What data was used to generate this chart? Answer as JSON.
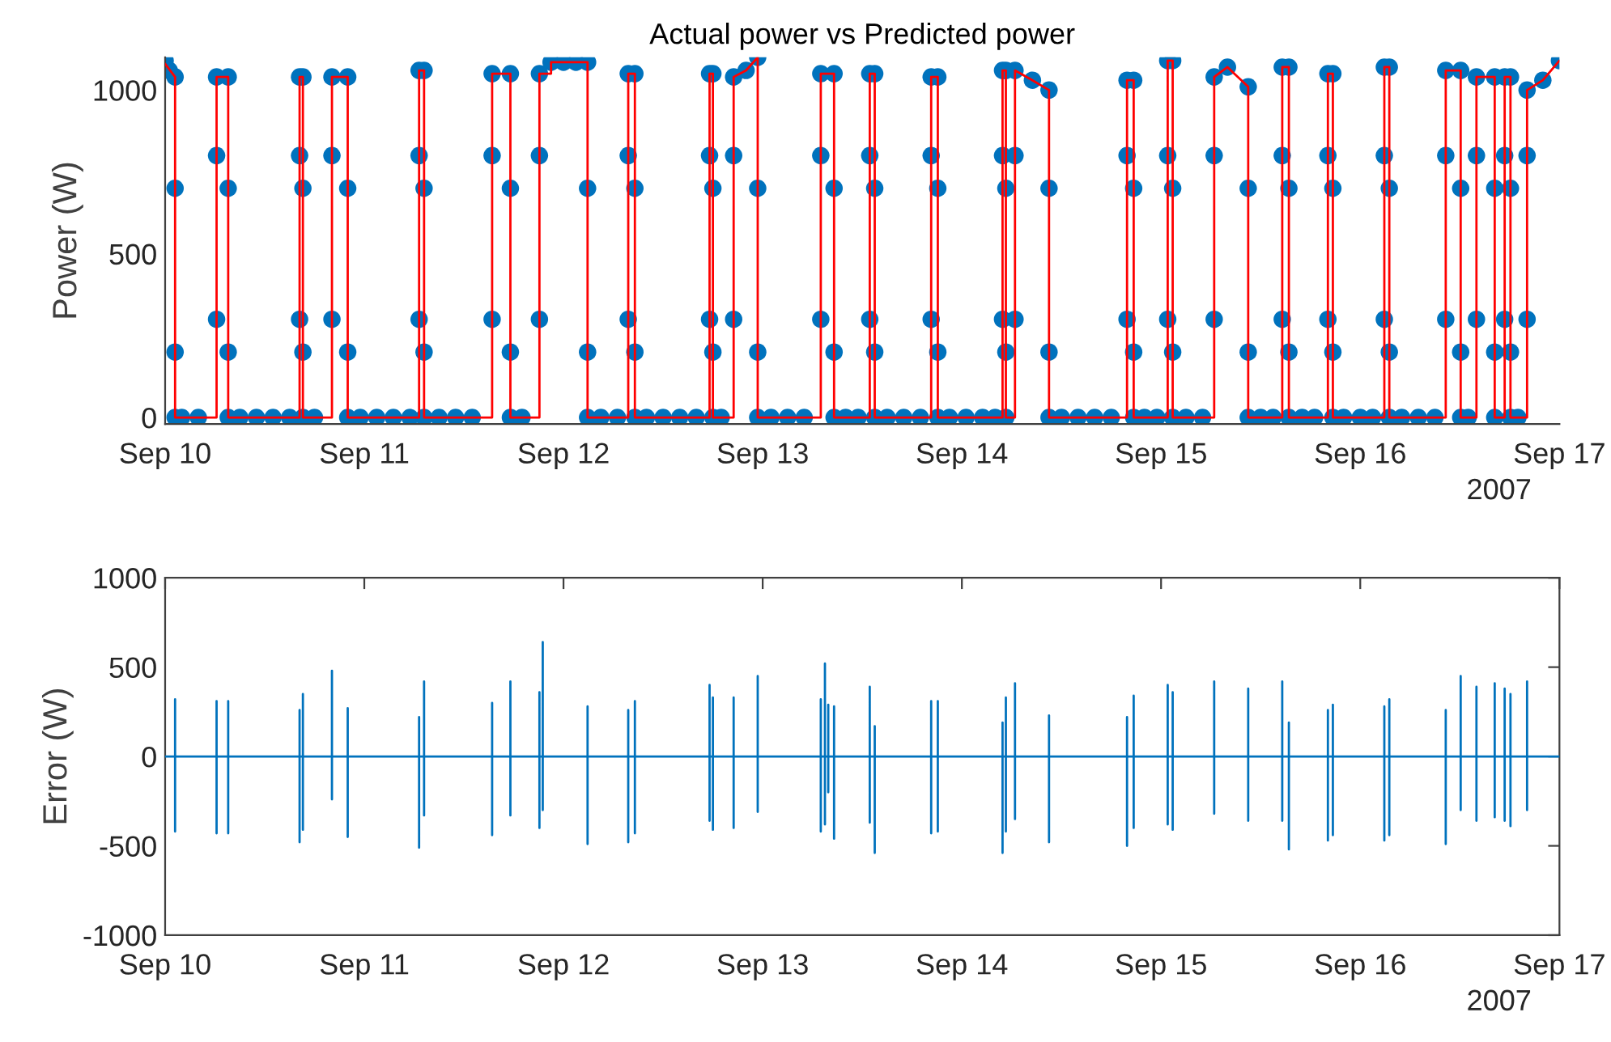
{
  "chart_data": [
    {
      "type": "scatter",
      "title": "Actual power vs Predicted power",
      "ylabel": "Power (W)",
      "annotations": [
        "2007"
      ],
      "grid": false,
      "xlim": [
        "2007-09-10",
        "2007-09-17"
      ],
      "xticks": [
        {
          "value": "2007-09-10",
          "label": "Sep 10"
        },
        {
          "value": "2007-09-11",
          "label": "Sep 11"
        },
        {
          "value": "2007-09-12",
          "label": "Sep 12"
        },
        {
          "value": "2007-09-13",
          "label": "Sep 13"
        },
        {
          "value": "2007-09-14",
          "label": "Sep 14"
        },
        {
          "value": "2007-09-15",
          "label": "Sep 15"
        },
        {
          "value": "2007-09-16",
          "label": "Sep 16"
        },
        {
          "value": "2007-09-17",
          "label": "Sep 17"
        }
      ],
      "ylim": [
        -20,
        1100
      ],
      "yticks": [
        0,
        500,
        1000
      ],
      "series": [
        {
          "color": "#0072bd",
          "marker": "circle",
          "x": [
            "2007-09-10T00:00",
            "2007-09-10T00:30",
            "2007-09-10T01:12",
            "2007-09-10T01:12",
            "2007-09-10T01:12",
            "2007-09-10T01:12",
            "2007-09-10T02:00",
            "2007-09-10T04:00",
            "2007-09-10T06:12",
            "2007-09-10T06:12",
            "2007-09-10T06:12",
            "2007-09-10T07:36",
            "2007-09-10T07:36",
            "2007-09-10T07:36",
            "2007-09-10T07:36",
            "2007-09-10T09:00",
            "2007-09-10T11:00",
            "2007-09-10T13:00",
            "2007-09-10T15:00",
            "2007-09-10T16:12",
            "2007-09-10T16:12",
            "2007-09-10T16:12",
            "2007-09-10T16:36",
            "2007-09-10T16:36",
            "2007-09-10T16:36",
            "2007-09-10T16:36",
            "2007-09-10T18:00",
            "2007-09-10T20:06",
            "2007-09-10T20:06",
            "2007-09-10T20:06",
            "2007-09-10T22:00",
            "2007-09-10T22:00",
            "2007-09-10T22:00",
            "2007-09-10T22:00",
            "2007-09-10T23:30",
            "2007-09-11T01:30",
            "2007-09-11T03:30",
            "2007-09-11T05:30",
            "2007-09-11T06:36",
            "2007-09-11T06:36",
            "2007-09-11T06:36",
            "2007-09-11T07:12",
            "2007-09-11T07:12",
            "2007-09-11T07:12",
            "2007-09-11T07:12",
            "2007-09-11T09:00",
            "2007-09-11T11:00",
            "2007-09-11T13:00",
            "2007-09-11T15:24",
            "2007-09-11T15:24",
            "2007-09-11T15:24",
            "2007-09-11T17:36",
            "2007-09-11T17:36",
            "2007-09-11T17:36",
            "2007-09-11T17:36",
            "2007-09-11T19:00",
            "2007-09-11T21:06",
            "2007-09-11T21:06",
            "2007-09-11T21:06",
            "2007-09-11T22:30",
            "2007-09-12T00:00",
            "2007-09-12T01:30",
            "2007-09-12T02:54",
            "2007-09-12T02:54",
            "2007-09-12T02:54",
            "2007-09-12T02:54",
            "2007-09-12T04:30",
            "2007-09-12T06:30",
            "2007-09-12T07:48",
            "2007-09-12T07:48",
            "2007-09-12T07:48",
            "2007-09-12T08:36",
            "2007-09-12T08:36",
            "2007-09-12T08:36",
            "2007-09-12T08:36",
            "2007-09-12T10:00",
            "2007-09-12T12:00",
            "2007-09-12T14:00",
            "2007-09-12T16:00",
            "2007-09-12T17:36",
            "2007-09-12T17:36",
            "2007-09-12T17:36",
            "2007-09-12T18:00",
            "2007-09-12T18:00",
            "2007-09-12T18:00",
            "2007-09-12T18:00",
            "2007-09-12T19:00",
            "2007-09-12T20:30",
            "2007-09-12T20:30",
            "2007-09-12T20:30",
            "2007-09-12T22:00",
            "2007-09-12T23:24",
            "2007-09-12T23:24",
            "2007-09-12T23:24",
            "2007-09-12T23:24",
            "2007-09-13T01:00",
            "2007-09-13T03:00",
            "2007-09-13T05:00",
            "2007-09-13T07:00",
            "2007-09-13T07:00",
            "2007-09-13T07:00",
            "2007-09-13T08:36",
            "2007-09-13T08:36",
            "2007-09-13T08:36",
            "2007-09-13T08:36",
            "2007-09-13T10:00",
            "2007-09-13T11:30",
            "2007-09-13T12:54",
            "2007-09-13T12:54",
            "2007-09-13T12:54",
            "2007-09-13T13:30",
            "2007-09-13T13:30",
            "2007-09-13T13:30",
            "2007-09-13T13:30",
            "2007-09-13T15:00",
            "2007-09-13T17:00",
            "2007-09-13T19:00",
            "2007-09-13T20:18",
            "2007-09-13T20:18",
            "2007-09-13T20:18",
            "2007-09-13T21:06",
            "2007-09-13T21:06",
            "2007-09-13T21:06",
            "2007-09-13T21:06",
            "2007-09-13T22:30",
            "2007-09-14T00:30",
            "2007-09-14T02:30",
            "2007-09-14T04:00",
            "2007-09-14T04:54",
            "2007-09-14T04:54",
            "2007-09-14T04:54",
            "2007-09-14T05:18",
            "2007-09-14T05:18",
            "2007-09-14T05:18",
            "2007-09-14T05:18",
            "2007-09-14T06:24",
            "2007-09-14T06:24",
            "2007-09-14T06:24",
            "2007-09-14T08:30",
            "2007-09-14T10:30",
            "2007-09-14T10:30",
            "2007-09-14T10:30",
            "2007-09-14T10:30",
            "2007-09-14T12:00",
            "2007-09-14T14:00",
            "2007-09-14T16:00",
            "2007-09-14T18:00",
            "2007-09-14T19:54",
            "2007-09-14T19:54",
            "2007-09-14T19:54",
            "2007-09-14T20:42",
            "2007-09-14T20:42",
            "2007-09-14T20:42",
            "2007-09-14T20:42",
            "2007-09-14T22:00",
            "2007-09-14T23:30",
            "2007-09-15T00:48",
            "2007-09-15T00:48",
            "2007-09-15T00:48",
            "2007-09-15T01:24",
            "2007-09-15T01:24",
            "2007-09-15T01:24",
            "2007-09-15T01:24",
            "2007-09-15T03:00",
            "2007-09-15T05:00",
            "2007-09-15T06:24",
            "2007-09-15T06:24",
            "2007-09-15T06:24",
            "2007-09-15T08:00",
            "2007-09-15T10:30",
            "2007-09-15T10:30",
            "2007-09-15T10:30",
            "2007-09-15T10:30",
            "2007-09-15T12:00",
            "2007-09-15T13:30",
            "2007-09-15T14:36",
            "2007-09-15T14:36",
            "2007-09-15T14:36",
            "2007-09-15T15:24",
            "2007-09-15T15:24",
            "2007-09-15T15:24",
            "2007-09-15T15:24",
            "2007-09-15T17:00",
            "2007-09-15T18:30",
            "2007-09-15T20:06",
            "2007-09-15T20:06",
            "2007-09-15T20:06",
            "2007-09-15T20:42",
            "2007-09-15T20:42",
            "2007-09-15T20:42",
            "2007-09-15T20:42",
            "2007-09-15T22:00",
            "2007-09-16T00:00",
            "2007-09-16T01:30",
            "2007-09-16T02:54",
            "2007-09-16T02:54",
            "2007-09-16T02:54",
            "2007-09-16T03:30",
            "2007-09-16T03:30",
            "2007-09-16T03:30",
            "2007-09-16T03:30",
            "2007-09-16T05:00",
            "2007-09-16T07:00",
            "2007-09-16T09:00",
            "2007-09-16T10:18",
            "2007-09-16T10:18",
            "2007-09-16T10:18",
            "2007-09-16T12:06",
            "2007-09-16T12:06",
            "2007-09-16T12:06",
            "2007-09-16T12:06",
            "2007-09-16T13:00",
            "2007-09-16T14:00",
            "2007-09-16T14:00",
            "2007-09-16T14:00",
            "2007-09-16T16:12",
            "2007-09-16T16:12",
            "2007-09-16T16:12",
            "2007-09-16T16:12",
            "2007-09-16T17:24",
            "2007-09-16T17:24",
            "2007-09-16T17:24",
            "2007-09-16T18:06",
            "2007-09-16T18:06",
            "2007-09-16T18:06",
            "2007-09-16T18:06",
            "2007-09-16T19:00",
            "2007-09-16T20:06",
            "2007-09-16T20:06",
            "2007-09-16T20:06",
            "2007-09-16T22:00",
            "2007-09-17T00:00"
          ],
          "values": [
            1090,
            1060,
            1040,
            700,
            200,
            0,
            0,
            0,
            300,
            800,
            1040,
            1040,
            700,
            200,
            0,
            0,
            0,
            0,
            0,
            300,
            800,
            1040,
            1040,
            700,
            200,
            0,
            0,
            300,
            800,
            1040,
            1040,
            700,
            200,
            0,
            0,
            0,
            0,
            0,
            300,
            800,
            1060,
            1060,
            700,
            200,
            0,
            0,
            0,
            0,
            300,
            800,
            1050,
            1050,
            700,
            200,
            0,
            0,
            300,
            800,
            1050,
            1085,
            1085,
            1085,
            1085,
            700,
            200,
            0,
            0,
            0,
            300,
            800,
            1050,
            1050,
            700,
            200,
            0,
            0,
            0,
            0,
            0,
            300,
            800,
            1050,
            1050,
            700,
            200,
            0,
            0,
            300,
            800,
            1040,
            1060,
            1100,
            700,
            200,
            0,
            0,
            0,
            0,
            300,
            800,
            1050,
            1050,
            700,
            200,
            0,
            0,
            0,
            300,
            800,
            1050,
            1050,
            700,
            200,
            0,
            0,
            0,
            0,
            300,
            800,
            1040,
            1040,
            700,
            200,
            0,
            0,
            0,
            0,
            0,
            300,
            800,
            1060,
            1060,
            700,
            200,
            0,
            300,
            800,
            1060,
            1030,
            1000,
            700,
            200,
            0,
            0,
            0,
            0,
            0,
            300,
            800,
            1030,
            1030,
            700,
            200,
            0,
            0,
            0,
            300,
            800,
            1090,
            1090,
            700,
            200,
            0,
            0,
            0,
            300,
            800,
            1040,
            1070,
            1010,
            700,
            200,
            0,
            0,
            0,
            300,
            800,
            1070,
            1070,
            700,
            200,
            0,
            0,
            0,
            300,
            800,
            1050,
            1050,
            700,
            200,
            0,
            0,
            0,
            0,
            300,
            800,
            1070,
            1070,
            700,
            200,
            0,
            0,
            0,
            0,
            300,
            800,
            1060,
            1060,
            700,
            200,
            0,
            0,
            300,
            800,
            1040,
            1040,
            700,
            200,
            0,
            300,
            800,
            1040,
            1040,
            700,
            200,
            0,
            0,
            300,
            800,
            1000,
            1030,
            1090
          ]
        },
        {
          "type": "line",
          "color": "#ff0000",
          "x": [
            "2007-09-10T00:00",
            "2007-09-10T01:12",
            "2007-09-10T01:12",
            "2007-09-10T06:12",
            "2007-09-10T06:12",
            "2007-09-10T07:36",
            "2007-09-10T07:36",
            "2007-09-10T16:12",
            "2007-09-10T16:12",
            "2007-09-10T16:36",
            "2007-09-10T16:36",
            "2007-09-10T20:06",
            "2007-09-10T20:06",
            "2007-09-10T22:00",
            "2007-09-10T22:00",
            "2007-09-11T06:36",
            "2007-09-11T06:36",
            "2007-09-11T07:12",
            "2007-09-11T07:12",
            "2007-09-11T15:24",
            "2007-09-11T15:24",
            "2007-09-11T17:36",
            "2007-09-11T17:36",
            "2007-09-11T21:06",
            "2007-09-11T21:06",
            "2007-09-11T22:30",
            "2007-09-11T22:30",
            "2007-09-12T02:54",
            "2007-09-12T02:54",
            "2007-09-12T07:48",
            "2007-09-12T07:48",
            "2007-09-12T08:36",
            "2007-09-12T08:36",
            "2007-09-12T17:36",
            "2007-09-12T17:36",
            "2007-09-12T18:00",
            "2007-09-12T18:00",
            "2007-09-12T20:30",
            "2007-09-12T20:30",
            "2007-09-12T22:00",
            "2007-09-12T23:24",
            "2007-09-12T23:24",
            "2007-09-13T07:00",
            "2007-09-13T07:00",
            "2007-09-13T08:36",
            "2007-09-13T08:36",
            "2007-09-13T12:54",
            "2007-09-13T12:54",
            "2007-09-13T13:30",
            "2007-09-13T13:30",
            "2007-09-13T20:18",
            "2007-09-13T20:18",
            "2007-09-13T21:06",
            "2007-09-13T21:06",
            "2007-09-14T04:54",
            "2007-09-14T04:54",
            "2007-09-14T05:18",
            "2007-09-14T05:18",
            "2007-09-14T06:24",
            "2007-09-14T06:24",
            "2007-09-14T08:30",
            "2007-09-14T10:30",
            "2007-09-14T10:30",
            "2007-09-14T19:54",
            "2007-09-14T19:54",
            "2007-09-14T20:42",
            "2007-09-14T20:42",
            "2007-09-15T00:48",
            "2007-09-15T00:48",
            "2007-09-15T01:24",
            "2007-09-15T01:24",
            "2007-09-15T06:24",
            "2007-09-15T06:24",
            "2007-09-15T08:00",
            "2007-09-15T10:30",
            "2007-09-15T10:30",
            "2007-09-15T14:36",
            "2007-09-15T14:36",
            "2007-09-15T15:24",
            "2007-09-15T15:24",
            "2007-09-15T20:06",
            "2007-09-15T20:06",
            "2007-09-15T20:42",
            "2007-09-15T20:42",
            "2007-09-16T02:54",
            "2007-09-16T02:54",
            "2007-09-16T03:30",
            "2007-09-16T03:30",
            "2007-09-16T10:18",
            "2007-09-16T10:18",
            "2007-09-16T12:06",
            "2007-09-16T12:06",
            "2007-09-16T14:00",
            "2007-09-16T14:00",
            "2007-09-16T16:12",
            "2007-09-16T16:12",
            "2007-09-16T17:24",
            "2007-09-16T17:24",
            "2007-09-16T18:06",
            "2007-09-16T18:06",
            "2007-09-16T20:06",
            "2007-09-16T20:06",
            "2007-09-16T22:00",
            "2007-09-17T00:00"
          ],
          "values": [
            1080,
            1040,
            0,
            0,
            1040,
            1040,
            0,
            0,
            1040,
            1040,
            0,
            0,
            1040,
            1040,
            0,
            0,
            1060,
            1060,
            0,
            0,
            1050,
            1050,
            0,
            0,
            1050,
            1050,
            1085,
            1085,
            0,
            0,
            1050,
            1050,
            0,
            0,
            1050,
            1050,
            0,
            0,
            1040,
            1060,
            1100,
            0,
            0,
            1050,
            1050,
            0,
            0,
            1050,
            1050,
            0,
            0,
            1040,
            1040,
            0,
            0,
            1060,
            1060,
            0,
            0,
            1060,
            1030,
            1000,
            0,
            0,
            1030,
            1030,
            0,
            0,
            1090,
            1090,
            0,
            0,
            1040,
            1070,
            1010,
            0,
            0,
            1070,
            1070,
            0,
            0,
            1050,
            1050,
            0,
            0,
            1070,
            1070,
            0,
            0,
            1060,
            1060,
            0,
            0,
            1040,
            1040,
            0,
            0,
            1040,
            1040,
            0,
            0,
            1000,
            1030,
            1090
          ]
        }
      ]
    },
    {
      "type": "line",
      "ylabel": "Error (W)",
      "annotations": [
        "2007"
      ],
      "grid": false,
      "xlim": [
        "2007-09-10",
        "2007-09-17"
      ],
      "xticks": [
        {
          "value": "2007-09-10",
          "label": "Sep 10"
        },
        {
          "value": "2007-09-11",
          "label": "Sep 11"
        },
        {
          "value": "2007-09-12",
          "label": "Sep 12"
        },
        {
          "value": "2007-09-13",
          "label": "Sep 13"
        },
        {
          "value": "2007-09-14",
          "label": "Sep 14"
        },
        {
          "value": "2007-09-15",
          "label": "Sep 15"
        },
        {
          "value": "2007-09-16",
          "label": "Sep 16"
        },
        {
          "value": "2007-09-17",
          "label": "Sep 17"
        }
      ],
      "ylim": [
        -1000,
        1000
      ],
      "yticks": [
        -1000,
        -500,
        0,
        500,
        1000
      ],
      "series": [
        {
          "color": "#0072bd",
          "x": [
            "2007-09-10T00:00",
            "2007-09-10T01:12",
            "2007-09-10T01:12",
            "2007-09-10T01:12",
            "2007-09-10T01:12",
            "2007-09-10T06:12",
            "2007-09-10T06:12",
            "2007-09-10T06:12",
            "2007-09-10T06:12",
            "2007-09-10T07:36",
            "2007-09-10T07:36",
            "2007-09-10T07:36",
            "2007-09-10T07:36",
            "2007-09-10T16:12",
            "2007-09-10T16:12",
            "2007-09-10T16:12",
            "2007-09-10T16:12",
            "2007-09-10T16:36",
            "2007-09-10T16:36",
            "2007-09-10T16:36",
            "2007-09-10T16:36",
            "2007-09-10T20:06",
            "2007-09-10T20:06",
            "2007-09-10T20:06",
            "2007-09-10T20:06",
            "2007-09-10T22:00",
            "2007-09-10T22:00",
            "2007-09-10T22:00",
            "2007-09-10T22:00",
            "2007-09-11T06:36",
            "2007-09-11T06:36",
            "2007-09-11T06:36",
            "2007-09-11T06:36",
            "2007-09-11T07:12",
            "2007-09-11T07:12",
            "2007-09-11T07:12",
            "2007-09-11T07:12",
            "2007-09-11T15:24",
            "2007-09-11T15:24",
            "2007-09-11T15:24",
            "2007-09-11T15:24",
            "2007-09-11T17:36",
            "2007-09-11T17:36",
            "2007-09-11T17:36",
            "2007-09-11T17:36",
            "2007-09-11T21:06",
            "2007-09-11T21:06",
            "2007-09-11T21:06",
            "2007-09-11T21:06",
            "2007-09-11T21:30",
            "2007-09-11T21:30",
            "2007-09-11T21:30",
            "2007-09-11T21:30",
            "2007-09-12T02:54",
            "2007-09-12T02:54",
            "2007-09-12T02:54",
            "2007-09-12T02:54",
            "2007-09-12T07:48",
            "2007-09-12T07:48",
            "2007-09-12T07:48",
            "2007-09-12T07:48",
            "2007-09-12T08:36",
            "2007-09-12T08:36",
            "2007-09-12T08:36",
            "2007-09-12T08:36",
            "2007-09-12T17:36",
            "2007-09-12T17:36",
            "2007-09-12T17:36",
            "2007-09-12T17:36",
            "2007-09-12T18:00",
            "2007-09-12T18:00",
            "2007-09-12T18:00",
            "2007-09-12T18:00",
            "2007-09-12T20:30",
            "2007-09-12T20:30",
            "2007-09-12T20:30",
            "2007-09-12T20:30",
            "2007-09-12T23:24",
            "2007-09-12T23:24",
            "2007-09-12T23:24",
            "2007-09-12T23:24",
            "2007-09-13T07:00",
            "2007-09-13T07:00",
            "2007-09-13T07:00",
            "2007-09-13T07:00",
            "2007-09-13T07:30",
            "2007-09-13T07:30",
            "2007-09-13T07:30",
            "2007-09-13T07:30",
            "2007-09-13T07:54",
            "2007-09-13T07:54",
            "2007-09-13T07:54",
            "2007-09-13T07:54",
            "2007-09-13T08:36",
            "2007-09-13T08:36",
            "2007-09-13T08:36",
            "2007-09-13T08:36",
            "2007-09-13T12:54",
            "2007-09-13T12:54",
            "2007-09-13T12:54",
            "2007-09-13T12:54",
            "2007-09-13T13:30",
            "2007-09-13T13:30",
            "2007-09-13T13:30",
            "2007-09-13T13:30",
            "2007-09-13T20:18",
            "2007-09-13T20:18",
            "2007-09-13T20:18",
            "2007-09-13T20:18",
            "2007-09-13T21:06",
            "2007-09-13T21:06",
            "2007-09-13T21:06",
            "2007-09-13T21:06",
            "2007-09-14T04:54",
            "2007-09-14T04:54",
            "2007-09-14T04:54",
            "2007-09-14T04:54",
            "2007-09-14T05:18",
            "2007-09-14T05:18",
            "2007-09-14T05:18",
            "2007-09-14T05:18",
            "2007-09-14T06:24",
            "2007-09-14T06:24",
            "2007-09-14T06:24",
            "2007-09-14T06:24",
            "2007-09-14T10:30",
            "2007-09-14T10:30",
            "2007-09-14T10:30",
            "2007-09-14T10:30",
            "2007-09-14T19:54",
            "2007-09-14T19:54",
            "2007-09-14T19:54",
            "2007-09-14T19:54",
            "2007-09-14T20:42",
            "2007-09-14T20:42",
            "2007-09-14T20:42",
            "2007-09-14T20:42",
            "2007-09-15T00:48",
            "2007-09-15T00:48",
            "2007-09-15T00:48",
            "2007-09-15T00:48",
            "2007-09-15T01:24",
            "2007-09-15T01:24",
            "2007-09-15T01:24",
            "2007-09-15T01:24",
            "2007-09-15T06:24",
            "2007-09-15T06:24",
            "2007-09-15T06:24",
            "2007-09-15T06:24",
            "2007-09-15T10:30",
            "2007-09-15T10:30",
            "2007-09-15T10:30",
            "2007-09-15T10:30",
            "2007-09-15T14:36",
            "2007-09-15T14:36",
            "2007-09-15T14:36",
            "2007-09-15T14:36",
            "2007-09-15T15:24",
            "2007-09-15T15:24",
            "2007-09-15T15:24",
            "2007-09-15T15:24",
            "2007-09-15T20:06",
            "2007-09-15T20:06",
            "2007-09-15T20:06",
            "2007-09-15T20:06",
            "2007-09-15T20:42",
            "2007-09-15T20:42",
            "2007-09-15T20:42",
            "2007-09-15T20:42",
            "2007-09-16T02:54",
            "2007-09-16T02:54",
            "2007-09-16T02:54",
            "2007-09-16T02:54",
            "2007-09-16T03:30",
            "2007-09-16T03:30",
            "2007-09-16T03:30",
            "2007-09-16T03:30",
            "2007-09-16T10:18",
            "2007-09-16T10:18",
            "2007-09-16T10:18",
            "2007-09-16T10:18",
            "2007-09-16T12:06",
            "2007-09-16T12:06",
            "2007-09-16T12:06",
            "2007-09-16T12:06",
            "2007-09-16T14:00",
            "2007-09-16T14:00",
            "2007-09-16T14:00",
            "2007-09-16T14:00",
            "2007-09-16T16:12",
            "2007-09-16T16:12",
            "2007-09-16T16:12",
            "2007-09-16T16:12",
            "2007-09-16T17:24",
            "2007-09-16T17:24",
            "2007-09-16T17:24",
            "2007-09-16T17:24",
            "2007-09-16T18:06",
            "2007-09-16T18:06",
            "2007-09-16T18:06",
            "2007-09-16T18:06",
            "2007-09-16T20:06",
            "2007-09-16T20:06",
            "2007-09-16T20:06",
            "2007-09-16T20:06",
            "2007-09-17T00:00"
          ],
          "values": [
            0,
            0,
            320,
            -420,
            0,
            0,
            310,
            -430,
            0,
            0,
            310,
            -430,
            0,
            0,
            260,
            -480,
            0,
            0,
            350,
            -410,
            0,
            0,
            480,
            -240,
            0,
            0,
            270,
            -450,
            0,
            0,
            220,
            -510,
            0,
            0,
            420,
            -330,
            0,
            0,
            300,
            -440,
            0,
            0,
            420,
            -330,
            0,
            0,
            360,
            -400,
            0,
            0,
            640,
            -300,
            0,
            0,
            280,
            -490,
            0,
            0,
            260,
            -480,
            0,
            0,
            310,
            -430,
            0,
            0,
            400,
            -360,
            0,
            0,
            330,
            -410,
            0,
            0,
            330,
            -400,
            0,
            0,
            450,
            -310,
            0,
            0,
            320,
            -420,
            0,
            0,
            520,
            -380,
            0,
            0,
            290,
            -200,
            0,
            0,
            280,
            -460,
            0,
            0,
            390,
            -370,
            0,
            0,
            170,
            -540,
            0,
            0,
            310,
            -430,
            0,
            0,
            310,
            -420,
            0,
            0,
            190,
            -540,
            0,
            0,
            330,
            -420,
            0,
            0,
            410,
            -350,
            0,
            0,
            230,
            -480,
            0,
            0,
            220,
            -500,
            0,
            0,
            340,
            -400,
            0,
            0,
            400,
            -380,
            0,
            0,
            360,
            -410,
            0,
            0,
            420,
            -320,
            0,
            0,
            380,
            -360,
            0,
            0,
            420,
            -360,
            0,
            0,
            190,
            -520,
            0,
            0,
            260,
            -470,
            0,
            0,
            290,
            -440,
            0,
            0,
            280,
            -470,
            0,
            0,
            320,
            -440,
            0,
            0,
            260,
            -490,
            0,
            0,
            450,
            -300,
            0,
            0,
            390,
            -360,
            0,
            0,
            410,
            -340,
            0,
            0,
            380,
            -360,
            0,
            0,
            350,
            -390,
            0,
            0,
            420,
            -300,
            0,
            0
          ]
        }
      ]
    }
  ]
}
